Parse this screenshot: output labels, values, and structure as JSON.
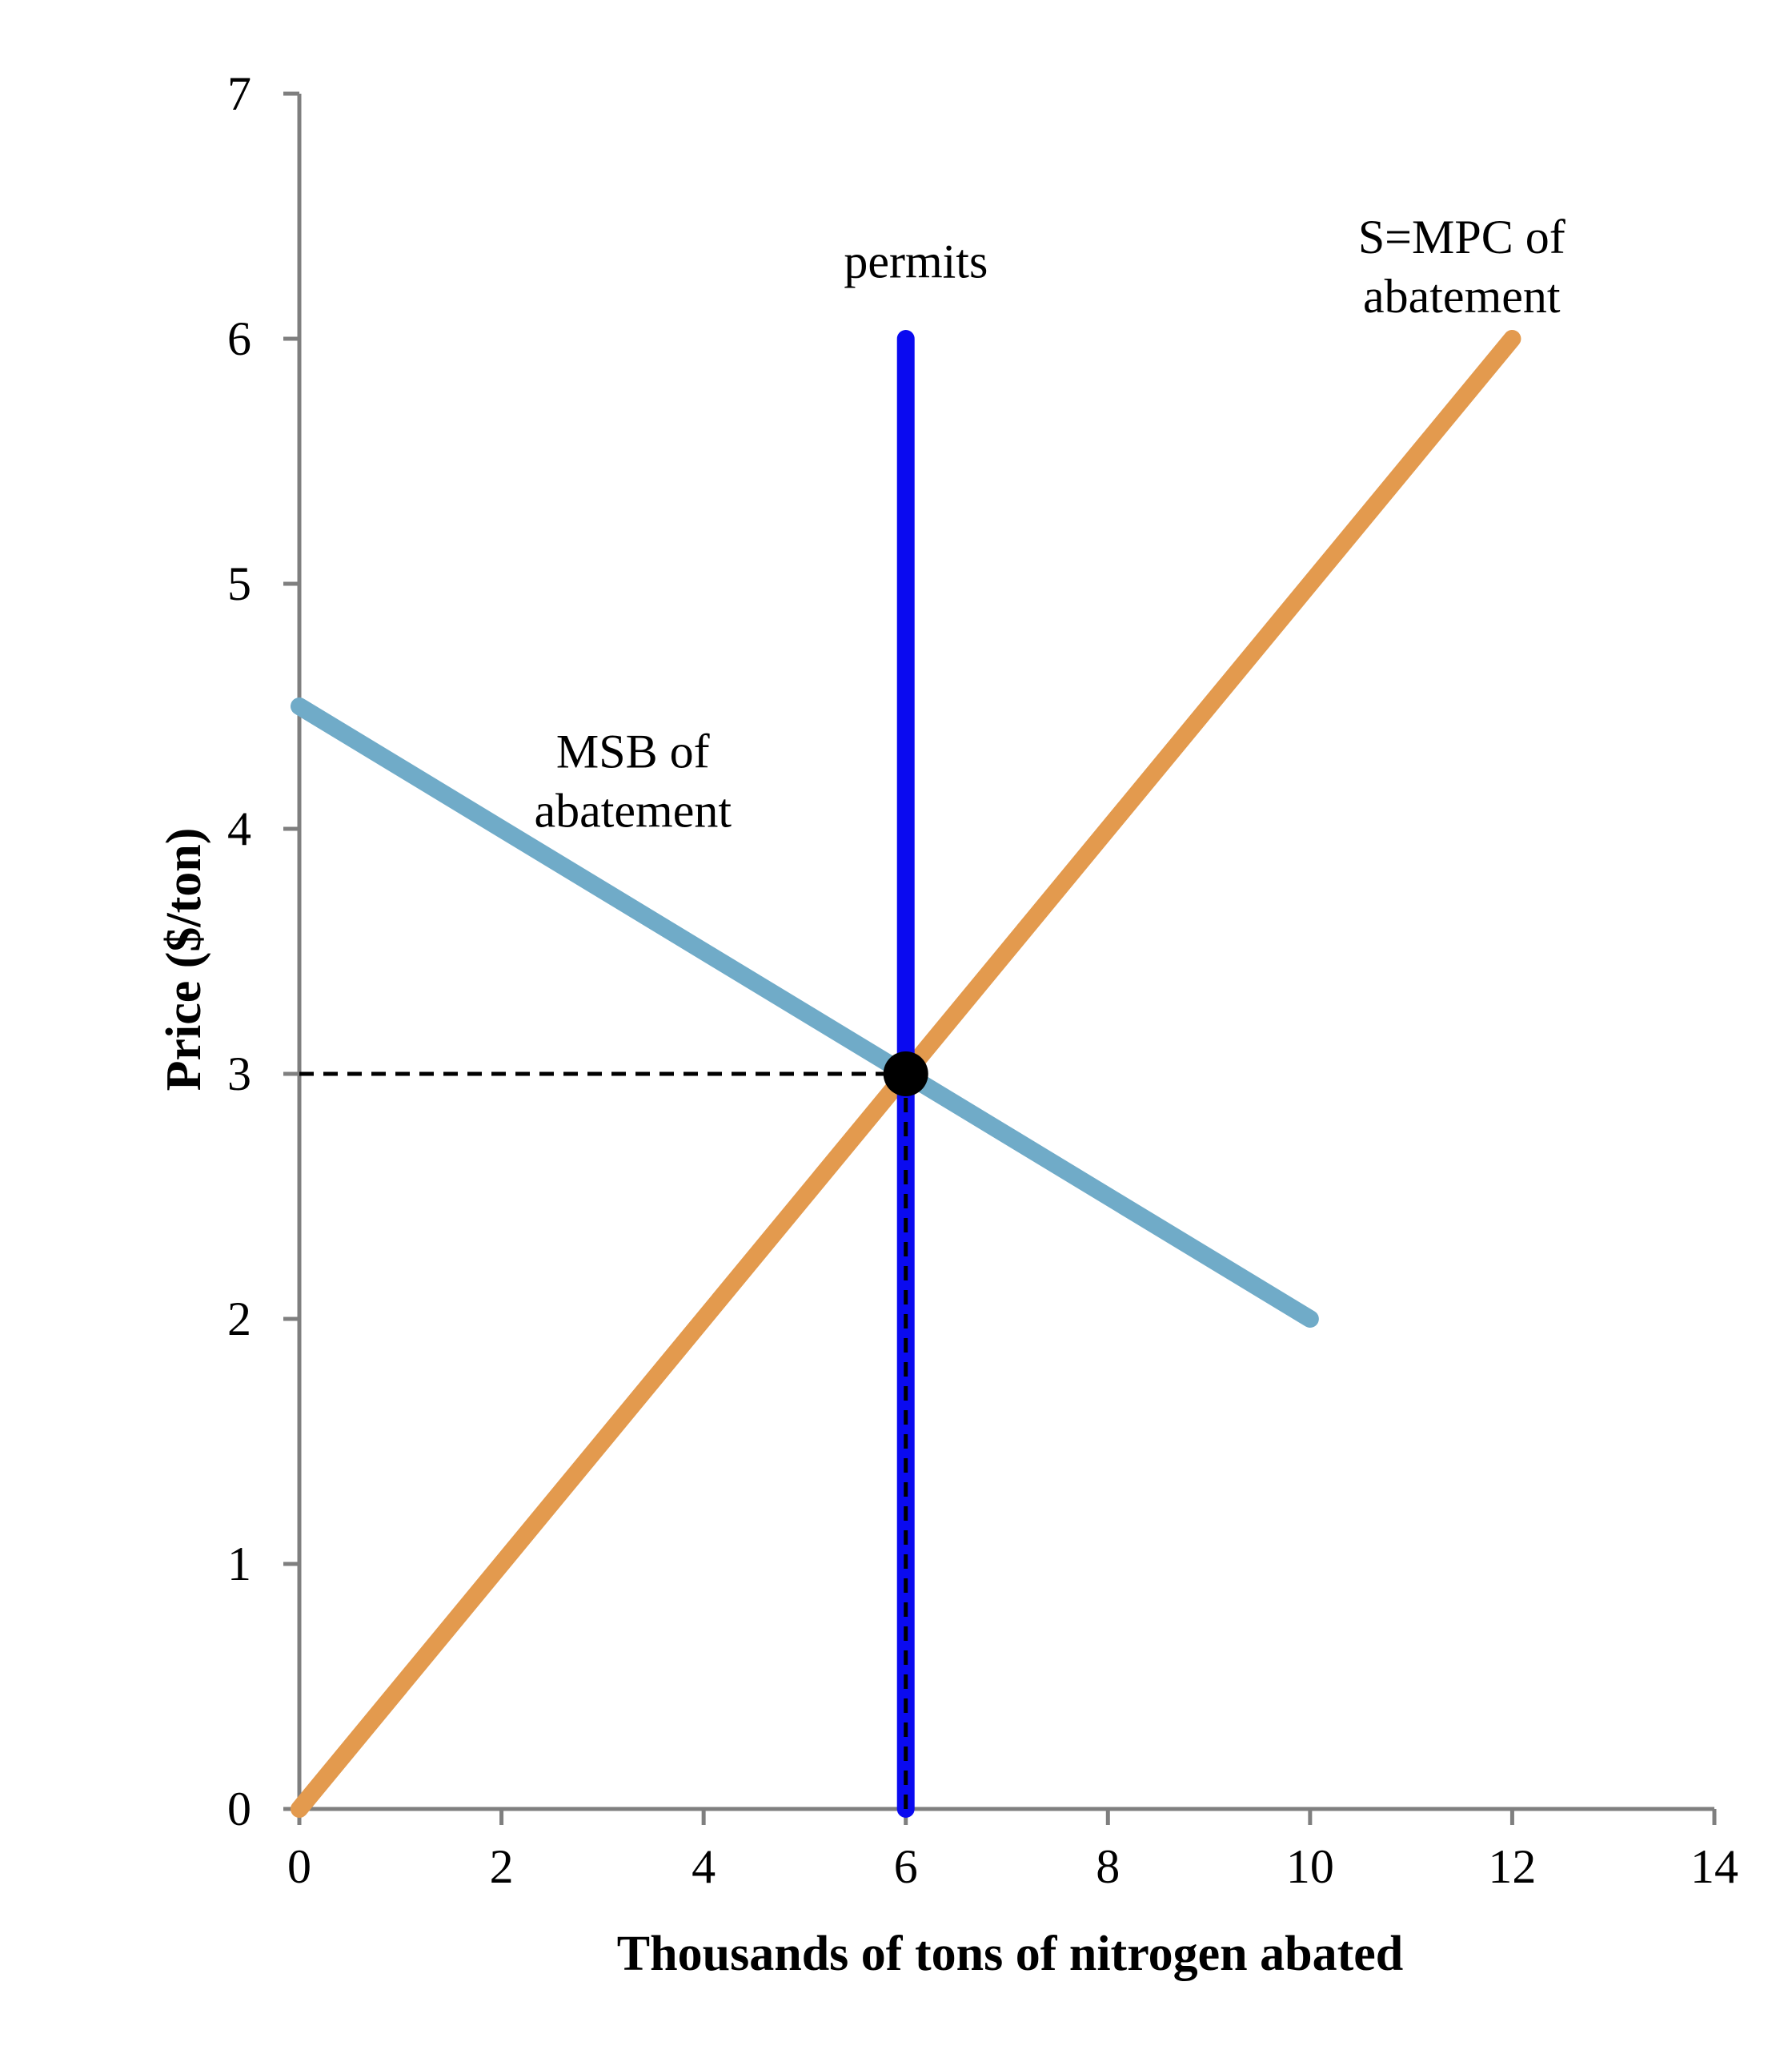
{
  "chart_data": {
    "type": "line",
    "xlabel": "Thousands of tons of nitrogen abated",
    "ylabel": "Price ($/ton)",
    "xlim": [
      0,
      14
    ],
    "ylim": [
      0,
      7
    ],
    "xticks": [
      0,
      2,
      4,
      6,
      8,
      10,
      12,
      14
    ],
    "yticks": [
      0,
      1,
      2,
      3,
      4,
      5,
      6,
      7
    ],
    "grid": false,
    "series": [
      {
        "name": "S=MPC of abatement",
        "color": "#E39A4E",
        "points": [
          [
            0,
            0
          ],
          [
            12,
            6
          ]
        ]
      },
      {
        "name": "MSB of abatement",
        "color": "#70ABC8",
        "points": [
          [
            0,
            4.5
          ],
          [
            10,
            2
          ]
        ]
      },
      {
        "name": "permits",
        "color": "#0A0AF0",
        "points": [
          [
            6,
            0
          ],
          [
            6,
            6
          ]
        ]
      }
    ],
    "annotations": [
      {
        "text": [
          "S=MPC of",
          "abatement"
        ],
        "at": [
          11.5,
          6.35
        ],
        "series": "S=MPC of abatement"
      },
      {
        "text": [
          "permits"
        ],
        "at": [
          6.1,
          6.25
        ],
        "series": "permits"
      },
      {
        "text": [
          "MSB of",
          "abatement"
        ],
        "at": [
          3.3,
          4.25
        ],
        "series": "MSB of abatement"
      }
    ],
    "equilibrium": {
      "x": 6,
      "y": 3,
      "color": "#000000"
    },
    "guide_lines": {
      "style": "dashed",
      "color": "#000000"
    },
    "axis_color": "#7F7F7F"
  }
}
